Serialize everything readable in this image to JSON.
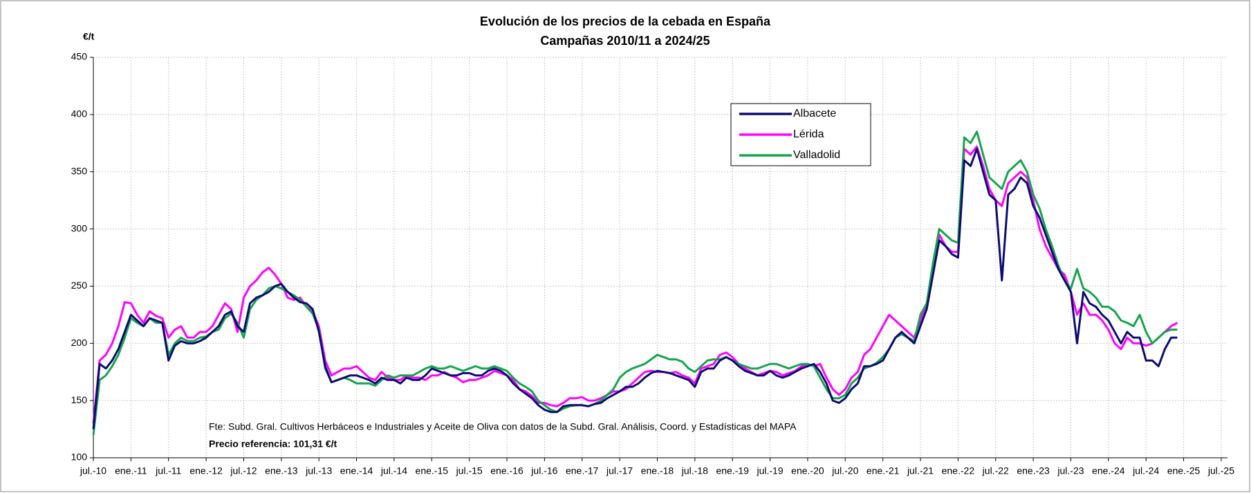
{
  "chart_data": {
    "type": "line",
    "title": "Evolución de los precios de la cebada en España",
    "subtitle": "Campañas 2010/11 a 2024/25",
    "y_label": "€/t",
    "source": "Fte: Subd. Gral. Cultivos Herbáceos e Industriales y Aceite de Oliva con datos de la Subd. Gral. Análisis, Coord. y Estadísticas del MAPA",
    "reference_note": "Precio referencia: 101,31 €/t",
    "grid": true,
    "legend": "upper center",
    "ylim": [
      100,
      450
    ],
    "yticks": [
      100,
      150,
      200,
      250,
      300,
      350,
      400,
      450
    ],
    "xlim": [
      "2010-07",
      "2025-08"
    ],
    "xticks": [
      {
        "value": "2010-07",
        "label": "jul.-10"
      },
      {
        "value": "2011-01",
        "label": "ene.-11"
      },
      {
        "value": "2011-07",
        "label": "jul.-11"
      },
      {
        "value": "2012-01",
        "label": "ene.-12"
      },
      {
        "value": "2012-07",
        "label": "jul.-12"
      },
      {
        "value": "2013-01",
        "label": "ene.-13"
      },
      {
        "value": "2013-07",
        "label": "jul.-13"
      },
      {
        "value": "2014-01",
        "label": "ene.-14"
      },
      {
        "value": "2014-07",
        "label": "jul.-14"
      },
      {
        "value": "2015-01",
        "label": "ene.-15"
      },
      {
        "value": "2015-07",
        "label": "jul.-15"
      },
      {
        "value": "2016-01",
        "label": "ene.-16"
      },
      {
        "value": "2016-07",
        "label": "jul.-16"
      },
      {
        "value": "2017-01",
        "label": "ene.-17"
      },
      {
        "value": "2017-07",
        "label": "jul.-17"
      },
      {
        "value": "2018-01",
        "label": "ene.-18"
      },
      {
        "value": "2018-07",
        "label": "jul.-18"
      },
      {
        "value": "2019-01",
        "label": "ene.-19"
      },
      {
        "value": "2019-07",
        "label": "jul.-19"
      },
      {
        "value": "2020-01",
        "label": "ene.-20"
      },
      {
        "value": "2020-07",
        "label": "jul.-20"
      },
      {
        "value": "2021-01",
        "label": "ene.-21"
      },
      {
        "value": "2021-07",
        "label": "jul.-21"
      },
      {
        "value": "2022-01",
        "label": "ene.-22"
      },
      {
        "value": "2022-07",
        "label": "jul.-22"
      },
      {
        "value": "2023-01",
        "label": "ene.-23"
      },
      {
        "value": "2023-07",
        "label": "jul.-23"
      },
      {
        "value": "2024-01",
        "label": "ene.-24"
      },
      {
        "value": "2024-07",
        "label": "jul.-24"
      },
      {
        "value": "2025-01",
        "label": "ene.-25"
      },
      {
        "value": "2025-07",
        "label": "jul.-25"
      }
    ],
    "x": [
      "2010-07",
      "2010-08",
      "2010-09",
      "2010-10",
      "2010-11",
      "2010-12",
      "2011-01",
      "2011-02",
      "2011-03",
      "2011-04",
      "2011-05",
      "2011-06",
      "2011-07",
      "2011-08",
      "2011-09",
      "2011-10",
      "2011-11",
      "2011-12",
      "2012-01",
      "2012-02",
      "2012-03",
      "2012-04",
      "2012-05",
      "2012-06",
      "2012-07",
      "2012-08",
      "2012-09",
      "2012-10",
      "2012-11",
      "2012-12",
      "2013-01",
      "2013-02",
      "2013-03",
      "2013-04",
      "2013-05",
      "2013-06",
      "2013-07",
      "2013-08",
      "2013-09",
      "2013-10",
      "2013-11",
      "2013-12",
      "2014-01",
      "2014-02",
      "2014-03",
      "2014-04",
      "2014-05",
      "2014-06",
      "2014-07",
      "2014-08",
      "2014-09",
      "2014-10",
      "2014-11",
      "2014-12",
      "2015-01",
      "2015-02",
      "2015-03",
      "2015-04",
      "2015-05",
      "2015-06",
      "2015-07",
      "2015-08",
      "2015-09",
      "2015-10",
      "2015-11",
      "2015-12",
      "2016-01",
      "2016-02",
      "2016-03",
      "2016-04",
      "2016-05",
      "2016-06",
      "2016-07",
      "2016-08",
      "2016-09",
      "2016-10",
      "2016-11",
      "2016-12",
      "2017-01",
      "2017-02",
      "2017-03",
      "2017-04",
      "2017-05",
      "2017-06",
      "2017-07",
      "2017-08",
      "2017-09",
      "2017-10",
      "2017-11",
      "2017-12",
      "2018-01",
      "2018-02",
      "2018-03",
      "2018-04",
      "2018-05",
      "2018-06",
      "2018-07",
      "2018-08",
      "2018-09",
      "2018-10",
      "2018-11",
      "2018-12",
      "2019-01",
      "2019-02",
      "2019-03",
      "2019-04",
      "2019-05",
      "2019-06",
      "2019-07",
      "2019-08",
      "2019-09",
      "2019-10",
      "2019-11",
      "2019-12",
      "2020-01",
      "2020-02",
      "2020-03",
      "2020-04",
      "2020-05",
      "2020-06",
      "2020-07",
      "2020-08",
      "2020-09",
      "2020-10",
      "2020-11",
      "2020-12",
      "2021-01",
      "2021-02",
      "2021-03",
      "2021-04",
      "2021-05",
      "2021-06",
      "2021-07",
      "2021-08",
      "2021-09",
      "2021-10",
      "2021-11",
      "2021-12",
      "2022-01",
      "2022-02",
      "2022-03",
      "2022-04",
      "2022-05",
      "2022-06",
      "2022-07",
      "2022-08",
      "2022-09",
      "2022-10",
      "2022-11",
      "2022-12",
      "2023-01",
      "2023-02",
      "2023-03",
      "2023-04",
      "2023-05",
      "2023-06",
      "2023-07",
      "2023-08",
      "2023-09",
      "2023-10",
      "2023-11",
      "2023-12",
      "2024-01",
      "2024-02",
      "2024-03",
      "2024-04",
      "2024-05",
      "2024-06",
      "2024-07",
      "2024-08",
      "2024-09",
      "2024-10",
      "2024-11",
      "2024-12"
    ],
    "series": [
      {
        "name": "Albacete",
        "color": "#0b0b72",
        "values": [
          125,
          182,
          178,
          185,
          195,
          210,
          225,
          220,
          215,
          222,
          220,
          218,
          185,
          198,
          202,
          200,
          200,
          202,
          205,
          210,
          215,
          225,
          228,
          215,
          210,
          235,
          240,
          242,
          245,
          250,
          252,
          245,
          240,
          236,
          235,
          230,
          210,
          180,
          166,
          168,
          170,
          172,
          172,
          170,
          168,
          165,
          170,
          168,
          168,
          165,
          170,
          168,
          168,
          172,
          178,
          176,
          174,
          172,
          172,
          174,
          174,
          172,
          172,
          176,
          178,
          176,
          172,
          165,
          160,
          156,
          152,
          146,
          142,
          140,
          140,
          145,
          146,
          146,
          146,
          145,
          147,
          148,
          152,
          155,
          158,
          162,
          162,
          165,
          170,
          174,
          176,
          175,
          174,
          172,
          170,
          168,
          162,
          175,
          178,
          178,
          185,
          188,
          185,
          180,
          176,
          174,
          172,
          172,
          176,
          172,
          170,
          172,
          175,
          178,
          180,
          182,
          175,
          165,
          150,
          148,
          152,
          160,
          165,
          180,
          180,
          182,
          185,
          195,
          205,
          210,
          205,
          200,
          215,
          230,
          260,
          290,
          285,
          278,
          275,
          360,
          355,
          370,
          350,
          330,
          325,
          255,
          330,
          335,
          345,
          340,
          320,
          310,
          295,
          280,
          265,
          255,
          245,
          200,
          245,
          235,
          232,
          225,
          220,
          210,
          200,
          210,
          205,
          205,
          185,
          185,
          180,
          195,
          205,
          205
        ]
      },
      {
        "name": "Lérida",
        "color": "#ff00ff",
        "values": [
          130,
          185,
          190,
          200,
          215,
          236,
          235,
          225,
          218,
          228,
          224,
          222,
          205,
          212,
          215,
          205,
          205,
          210,
          210,
          215,
          225,
          235,
          230,
          210,
          240,
          250,
          255,
          262,
          266,
          260,
          252,
          240,
          238,
          240,
          232,
          228,
          215,
          185,
          172,
          175,
          178,
          178,
          180,
          175,
          170,
          168,
          175,
          170,
          168,
          168,
          172,
          170,
          170,
          168,
          172,
          172,
          175,
          172,
          170,
          166,
          168,
          168,
          170,
          172,
          176,
          174,
          172,
          168,
          160,
          158,
          154,
          148,
          148,
          146,
          145,
          148,
          152,
          152,
          153,
          150,
          150,
          152,
          155,
          158,
          158,
          160,
          165,
          170,
          175,
          176,
          175,
          175,
          174,
          175,
          172,
          170,
          165,
          178,
          180,
          182,
          190,
          192,
          188,
          182,
          178,
          175,
          172,
          174,
          176,
          175,
          172,
          174,
          176,
          180,
          182,
          180,
          182,
          170,
          160,
          155,
          160,
          170,
          175,
          190,
          195,
          205,
          215,
          225,
          220,
          215,
          210,
          205,
          220,
          235,
          260,
          295,
          285,
          280,
          280,
          370,
          365,
          372,
          355,
          335,
          325,
          320,
          340,
          345,
          350,
          345,
          325,
          300,
          285,
          275,
          265,
          260,
          245,
          225,
          235,
          225,
          225,
          220,
          212,
          200,
          195,
          205,
          200,
          200,
          198,
          200,
          205,
          210,
          215,
          218
        ]
      },
      {
        "name": "Valladolid",
        "color": "#13a54a",
        "values": [
          120,
          168,
          172,
          180,
          190,
          205,
          222,
          218,
          215,
          222,
          218,
          218,
          190,
          200,
          205,
          202,
          202,
          205,
          206,
          210,
          212,
          222,
          226,
          218,
          205,
          230,
          238,
          242,
          248,
          250,
          248,
          245,
          242,
          238,
          232,
          226,
          212,
          178,
          166,
          168,
          170,
          168,
          165,
          165,
          165,
          163,
          168,
          172,
          170,
          172,
          172,
          172,
          175,
          178,
          180,
          178,
          178,
          180,
          178,
          176,
          178,
          180,
          178,
          178,
          180,
          178,
          176,
          170,
          165,
          162,
          158,
          150,
          146,
          142,
          140,
          143,
          145,
          146,
          146,
          145,
          147,
          150,
          155,
          160,
          170,
          175,
          178,
          180,
          182,
          186,
          190,
          188,
          186,
          186,
          184,
          178,
          175,
          180,
          185,
          186,
          186,
          188,
          185,
          182,
          180,
          178,
          178,
          180,
          182,
          182,
          180,
          178,
          180,
          182,
          182,
          180,
          170,
          160,
          152,
          152,
          155,
          165,
          170,
          178,
          180,
          183,
          188,
          195,
          205,
          208,
          205,
          202,
          225,
          235,
          270,
          300,
          295,
          290,
          288,
          380,
          375,
          385,
          365,
          345,
          340,
          335,
          350,
          355,
          360,
          350,
          330,
          318,
          300,
          285,
          268,
          255,
          248,
          265,
          248,
          245,
          240,
          232,
          232,
          228,
          220,
          218,
          215,
          225,
          210,
          200,
          205,
          210,
          212,
          212
        ]
      }
    ]
  }
}
